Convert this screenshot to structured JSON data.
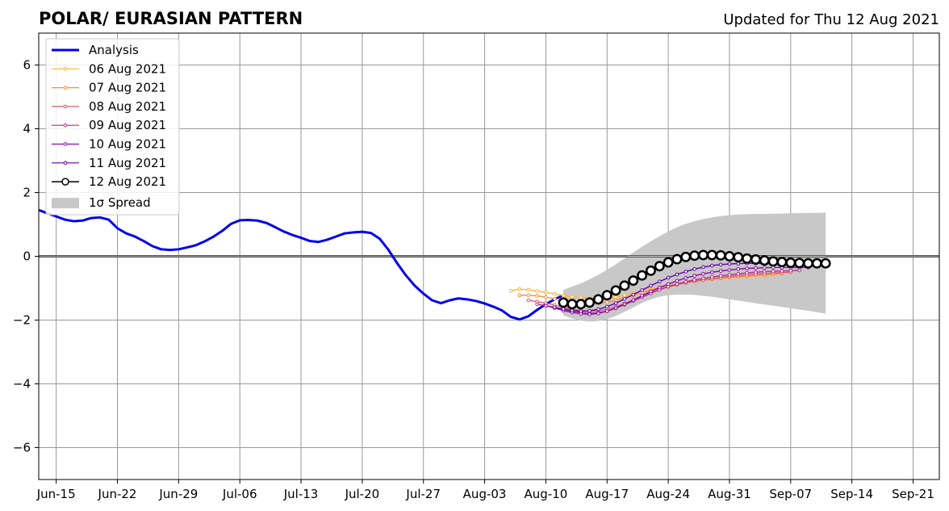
{
  "chart_data": {
    "type": "line",
    "title": "POLAR/ EURASIAN  PATTERN",
    "subtitle": "Updated for Thu 12 Aug 2021",
    "xlabel": "",
    "ylabel": "",
    "x_ticks": [
      "Jun-15",
      "Jun-22",
      "Jun-29",
      "Jul-06",
      "Jul-13",
      "Jul-20",
      "Jul-27",
      "Aug-03",
      "Aug-10",
      "Aug-17",
      "Aug-24",
      "Aug-31",
      "Sep-07",
      "Sep-14",
      "Sep-21"
    ],
    "x_tick_days": [
      0,
      7,
      14,
      21,
      28,
      35,
      42,
      49,
      56,
      63,
      70,
      77,
      84,
      91,
      98
    ],
    "x_range_days": [
      -2,
      101
    ],
    "y_ticks": [
      "6",
      "4",
      "2",
      "0",
      "−2",
      "−4",
      "−6"
    ],
    "y_tick_values": [
      6,
      4,
      2,
      0,
      -2,
      -4,
      -6
    ],
    "ylim": [
      -7,
      7
    ],
    "grid": true,
    "zero_line": true,
    "legend_position": "top-left",
    "colors": {
      "analysis": "#0000ee",
      "f06": "#fdb42f",
      "f07": "#f68d45",
      "f08": "#db5c68",
      "f09": "#b52f8c",
      "f10": "#8b0aa5",
      "f11": "#5c01a6",
      "f12": "#000000",
      "spread": "#c8c8c8",
      "grid": "#999999",
      "zero": "#555555"
    },
    "analysis": {
      "name": "Analysis",
      "x": [
        -2,
        -1,
        0,
        1,
        2,
        3,
        4,
        5,
        6,
        7,
        8,
        9,
        10,
        11,
        12,
        13,
        14,
        15,
        16,
        17,
        18,
        19,
        20,
        21,
        22,
        23,
        24,
        25,
        26,
        27,
        28,
        29,
        30,
        31,
        32,
        33,
        34,
        35,
        36,
        37,
        38,
        39,
        40,
        41,
        42,
        43,
        44,
        45,
        46,
        47,
        48,
        49,
        50,
        51,
        52,
        53,
        54,
        55,
        56,
        57,
        58
      ],
      "y": [
        1.45,
        1.35,
        1.25,
        1.15,
        1.1,
        1.12,
        1.2,
        1.22,
        1.15,
        0.88,
        0.72,
        0.62,
        0.48,
        0.32,
        0.22,
        0.2,
        0.22,
        0.28,
        0.35,
        0.47,
        0.62,
        0.8,
        1.02,
        1.13,
        1.14,
        1.12,
        1.05,
        0.92,
        0.78,
        0.67,
        0.58,
        0.48,
        0.45,
        0.52,
        0.62,
        0.72,
        0.75,
        0.77,
        0.73,
        0.55,
        0.2,
        -0.22,
        -0.6,
        -0.92,
        -1.17,
        -1.38,
        -1.47,
        -1.38,
        -1.32,
        -1.35,
        -1.4,
        -1.48,
        -1.58,
        -1.7,
        -1.9,
        -1.98,
        -1.88,
        -1.68,
        -1.5,
        -1.35,
        -1.22
      ]
    },
    "forecasts": [
      {
        "name": "06 Aug 2021",
        "color_key": "f06",
        "x0": 52,
        "y": [
          -1.08,
          -1.03,
          -1.05,
          -1.09,
          -1.13,
          -1.18,
          -1.23,
          -1.27,
          -1.3,
          -1.32,
          -1.33,
          -1.32,
          -1.28,
          -1.22,
          -1.15,
          -1.08,
          -1.02,
          -0.96,
          -0.91,
          -0.86,
          -0.82,
          -0.78,
          -0.75,
          -0.72,
          -0.69,
          -0.67,
          -0.65,
          -0.63,
          -0.61,
          -0.6,
          -0.59
        ]
      },
      {
        "name": "07 Aug 2021",
        "color_key": "f07",
        "x0": 53,
        "y": [
          -1.22,
          -1.22,
          -1.24,
          -1.28,
          -1.33,
          -1.38,
          -1.42,
          -1.45,
          -1.47,
          -1.47,
          -1.44,
          -1.38,
          -1.3,
          -1.22,
          -1.14,
          -1.06,
          -0.99,
          -0.93,
          -0.88,
          -0.83,
          -0.79,
          -0.75,
          -0.72,
          -0.69,
          -0.66,
          -0.64,
          -0.62,
          -0.6,
          -0.58,
          -0.56,
          -0.54
        ]
      },
      {
        "name": "08 Aug 2021",
        "color_key": "f08",
        "x0": 54,
        "y": [
          -1.38,
          -1.42,
          -1.47,
          -1.53,
          -1.6,
          -1.66,
          -1.7,
          -1.72,
          -1.71,
          -1.66,
          -1.58,
          -1.48,
          -1.37,
          -1.25,
          -1.14,
          -1.04,
          -0.96,
          -0.89,
          -0.83,
          -0.78,
          -0.74,
          -0.7,
          -0.66,
          -0.63,
          -0.6,
          -0.58,
          -0.56,
          -0.54,
          -0.52,
          -0.51,
          -0.5
        ]
      },
      {
        "name": "09 Aug 2021",
        "color_key": "f09",
        "x0": 55,
        "y": [
          -1.5,
          -1.55,
          -1.6,
          -1.66,
          -1.72,
          -1.76,
          -1.78,
          -1.77,
          -1.72,
          -1.63,
          -1.52,
          -1.4,
          -1.28,
          -1.16,
          -1.05,
          -0.95,
          -0.87,
          -0.8,
          -0.74,
          -0.69,
          -0.65,
          -0.61,
          -0.58,
          -0.55,
          -0.52,
          -0.5,
          -0.48,
          -0.47,
          -0.46,
          -0.45,
          -0.44
        ]
      },
      {
        "name": "10 Aug 2021",
        "color_key": "f10",
        "x0": 56,
        "y": [
          -1.55,
          -1.62,
          -1.7,
          -1.76,
          -1.8,
          -1.82,
          -1.79,
          -1.72,
          -1.62,
          -1.5,
          -1.37,
          -1.23,
          -1.1,
          -0.98,
          -0.87,
          -0.77,
          -0.68,
          -0.61,
          -0.55,
          -0.5,
          -0.46,
          -0.43,
          -0.4,
          -0.38,
          -0.37,
          -0.36,
          -0.35,
          -0.35,
          -0.35,
          -0.35,
          -0.35
        ]
      },
      {
        "name": "11 Aug 2021",
        "color_key": "f11",
        "x0": 57,
        "y": [
          -1.6,
          -1.65,
          -1.7,
          -1.72,
          -1.71,
          -1.66,
          -1.58,
          -1.47,
          -1.34,
          -1.2,
          -1.06,
          -0.92,
          -0.79,
          -0.67,
          -0.57,
          -0.48,
          -0.4,
          -0.34,
          -0.29,
          -0.26,
          -0.24,
          -0.23,
          -0.22,
          -0.22,
          -0.22,
          -0.23,
          -0.24,
          -0.25,
          -0.26,
          -0.27,
          -0.28
        ]
      },
      {
        "name": "12 Aug 2021",
        "color_key": "f12",
        "x0": 58,
        "y": [
          -1.45,
          -1.5,
          -1.5,
          -1.45,
          -1.35,
          -1.22,
          -1.07,
          -0.92,
          -0.76,
          -0.6,
          -0.45,
          -0.31,
          -0.19,
          -0.09,
          -0.02,
          0.02,
          0.04,
          0.04,
          0.03,
          0.0,
          -0.03,
          -0.07,
          -0.1,
          -0.13,
          -0.16,
          -0.18,
          -0.2,
          -0.21,
          -0.22,
          -0.22,
          -0.22
        ]
      }
    ],
    "spread": {
      "name": "1σ Spread",
      "x0": 58,
      "upper": [
        -1.05,
        -0.95,
        -0.85,
        -0.72,
        -0.58,
        -0.42,
        -0.25,
        -0.07,
        0.12,
        0.3,
        0.47,
        0.63,
        0.78,
        0.91,
        1.02,
        1.1,
        1.17,
        1.22,
        1.26,
        1.29,
        1.31,
        1.32,
        1.33,
        1.33,
        1.34,
        1.34,
        1.35,
        1.35,
        1.36,
        1.36,
        1.37
      ],
      "lower": [
        -1.85,
        -1.95,
        -2.02,
        -2.05,
        -2.03,
        -1.97,
        -1.87,
        -1.74,
        -1.6,
        -1.46,
        -1.35,
        -1.27,
        -1.22,
        -1.2,
        -1.2,
        -1.21,
        -1.24,
        -1.27,
        -1.31,
        -1.35,
        -1.39,
        -1.43,
        -1.47,
        -1.51,
        -1.55,
        -1.59,
        -1.63,
        -1.67,
        -1.71,
        -1.75,
        -1.8
      ]
    }
  }
}
